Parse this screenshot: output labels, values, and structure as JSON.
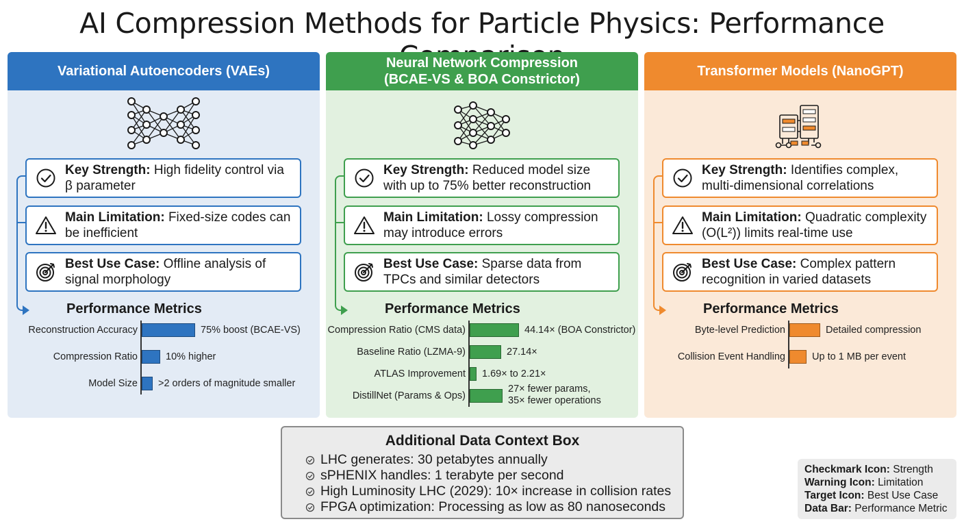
{
  "title": "AI Compression Methods for Particle Physics: Performance Comparison",
  "panels": [
    {
      "header_lines": [
        "Variational Autoencoders (VAEs)"
      ],
      "accent": "#2e74c0",
      "background": "#e3ebf5",
      "icon": "network-diagram-icon",
      "cards": [
        {
          "label": "Key Strength:",
          "text": "High fidelity control via β parameter",
          "icon": "checkmark-icon"
        },
        {
          "label": "Main Limitation:",
          "text": "Fixed-size codes can be inefficient",
          "icon": "warning-icon"
        },
        {
          "label": "Best Use Case:",
          "text": "Offline analysis of signal morphology",
          "icon": "target-icon"
        }
      ],
      "metrics_title": "Performance Metrics",
      "bar_color": "#2e74c0",
      "metrics": [
        {
          "label": "Reconstruction Accuracy",
          "value": "75% boost (BCAE-VS)",
          "level": 1.0
        },
        {
          "label": "Compression Ratio",
          "value": "10% higher",
          "level": 0.35
        },
        {
          "label": "Model Size",
          "value": ">2 orders of magnitude smaller",
          "level": 0.2
        }
      ]
    },
    {
      "header_lines": [
        "Neural Network Compression",
        "(BCAE-VS & BOA Constrictor)"
      ],
      "accent": "#3f9f4e",
      "background": "#e2f1e0",
      "icon": "neural-network-icon",
      "cards": [
        {
          "label": "Key Strength:",
          "text": "Reduced model size with up to 75% better reconstruction",
          "icon": "checkmark-icon"
        },
        {
          "label": "Main Limitation:",
          "text": "Lossy compression may introduce errors",
          "icon": "warning-icon"
        },
        {
          "label": "Best Use Case:",
          "text": "Sparse data from TPCs and similar detectors",
          "icon": "target-icon"
        }
      ],
      "metrics_title": "Performance Metrics",
      "bar_color": "#3f9f4e",
      "metrics": [
        {
          "label": "Compression Ratio (CMS data)",
          "value": "44.14× (BOA Constrictor)",
          "level": 1.0
        },
        {
          "label": "Baseline Ratio (LZMA-9)",
          "value": "27.14×",
          "level": 0.64
        },
        {
          "label": "ATLAS Improvement",
          "value": "1.69× to 2.21×",
          "level": 0.12
        },
        {
          "label": "DistillNet (Params & Ops)",
          "value_lines": [
            "27× fewer params,",
            "35× fewer operations"
          ],
          "level": 0.66
        }
      ]
    },
    {
      "header_lines": [
        "Transformer Models (NanoGPT)"
      ],
      "accent": "#ef8a2e",
      "background": "#fbe9d8",
      "icon": "transformer-diagram-icon",
      "cards": [
        {
          "label": "Key Strength:",
          "text": "Identifies complex, multi-dimensional correlations",
          "icon": "checkmark-icon"
        },
        {
          "label": "Main Limitation:",
          "text": "Quadratic complexity (O(L²)) limits real-time use",
          "icon": "warning-icon"
        },
        {
          "label": "Best Use Case:",
          "text": "Complex pattern recognition in varied datasets",
          "icon": "target-icon"
        }
      ],
      "metrics_title": "Performance Metrics",
      "bar_color": "#ef8a2e",
      "metrics": [
        {
          "label": "Byte-level Prediction",
          "value": "Detailed compression",
          "level": 1.0
        },
        {
          "label": "Collision Event Handling",
          "value": "Up to 1 MB per event",
          "level": 0.55
        }
      ]
    }
  ],
  "context_box": {
    "title": "Additional Data Context Box",
    "items": [
      "LHC generates: 30 petabytes annually",
      "sPHENIX handles: 1 terabyte per second",
      "High Luminosity LHC (2029): 10× increase in collision rates",
      "FPGA optimization: Processing as low as 80 nanoseconds"
    ]
  },
  "legend": [
    {
      "key": "Checkmark Icon:",
      "value": "Strength"
    },
    {
      "key": "Warning Icon:",
      "value": "Limitation"
    },
    {
      "key": "Target Icon:",
      "value": "Best Use Case"
    },
    {
      "key": "Data Bar:",
      "value": "Performance Metric"
    }
  ]
}
